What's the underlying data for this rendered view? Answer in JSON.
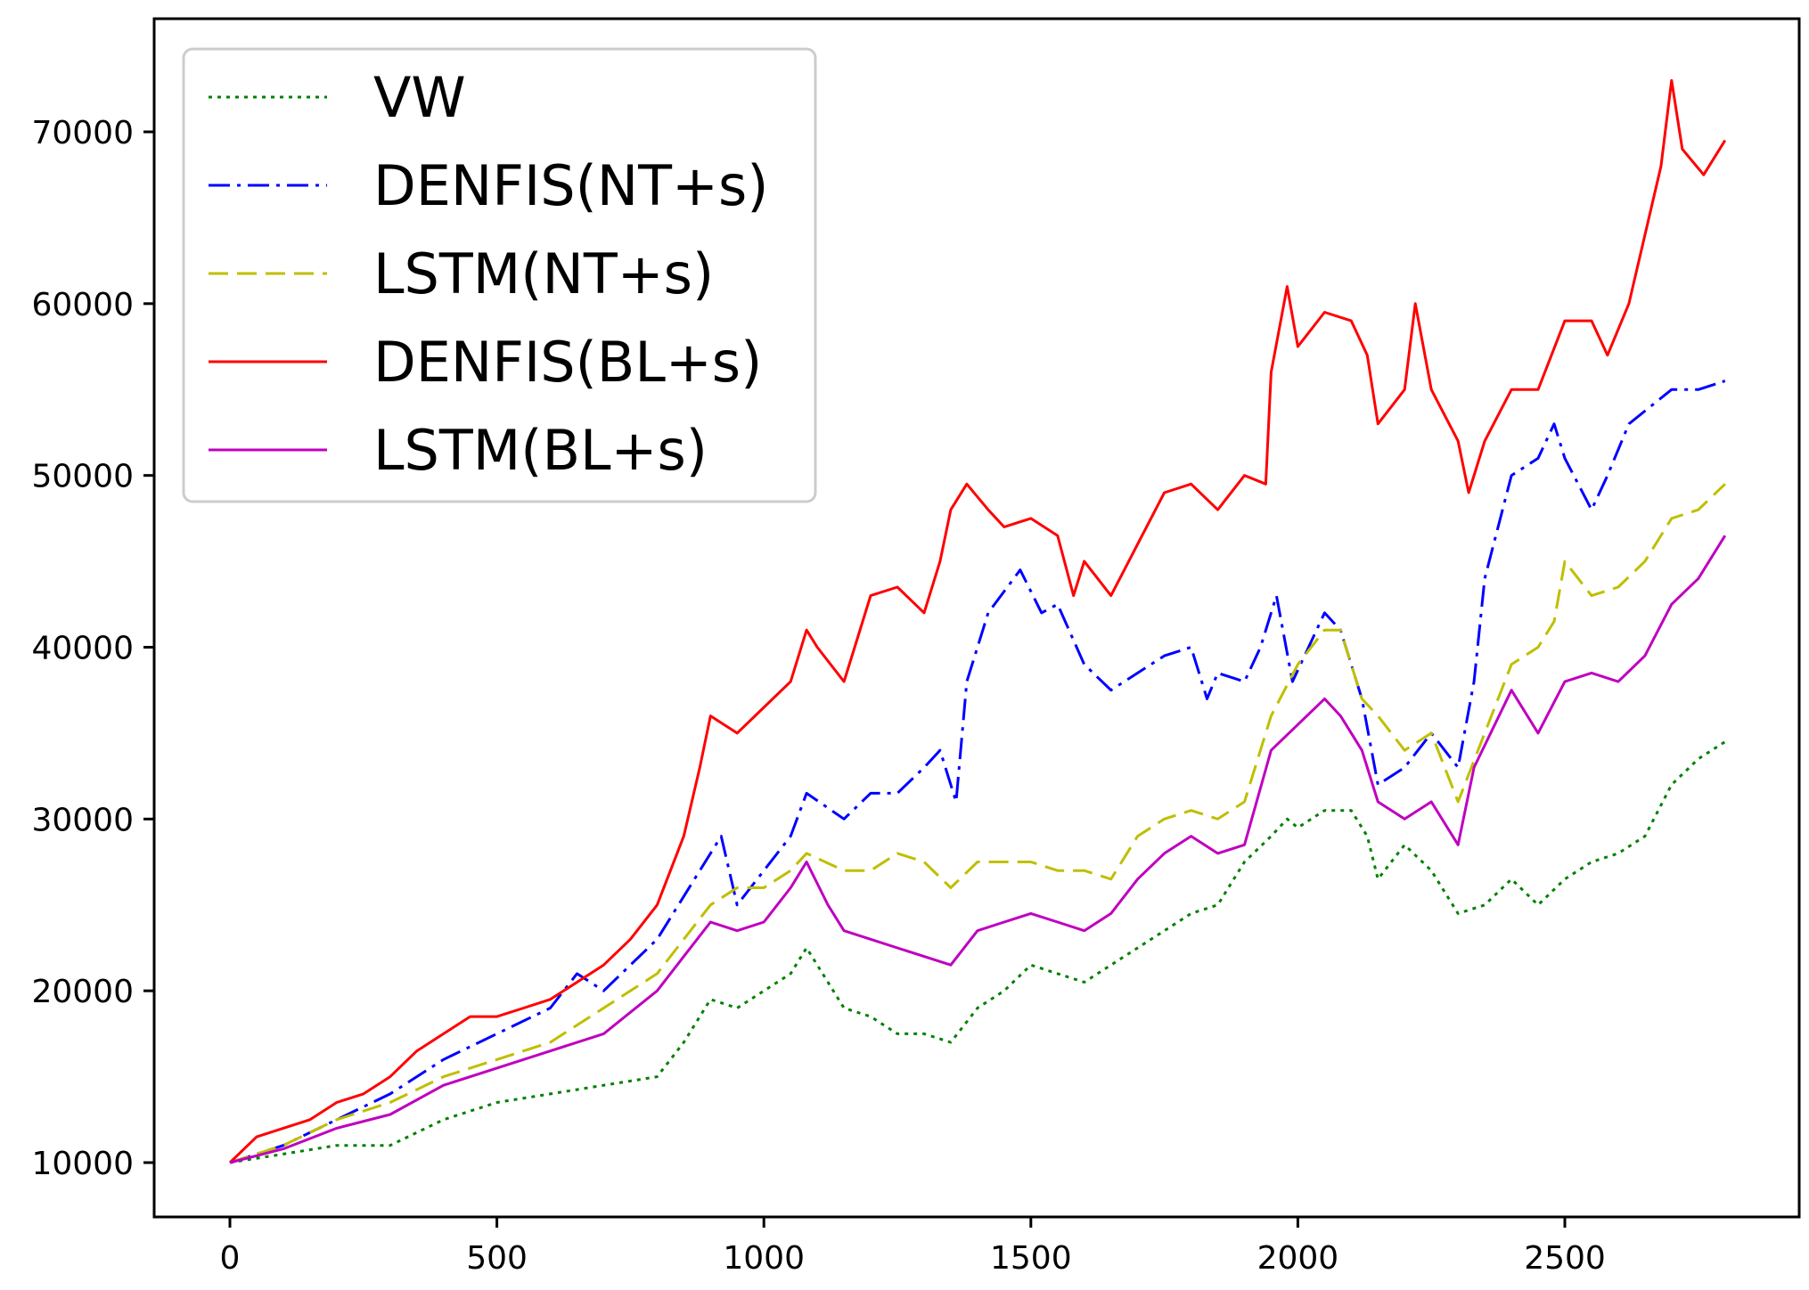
{
  "chart_data": {
    "type": "line",
    "title": "",
    "xlabel": "",
    "ylabel": "",
    "xlim": [
      -140,
      2950
    ],
    "ylim": [
      6800,
      77500
    ],
    "xticks": [
      0,
      500,
      1000,
      1500,
      2000,
      2500
    ],
    "yticks": [
      10000,
      20000,
      30000,
      40000,
      50000,
      60000,
      70000
    ],
    "xtick_labels": [
      "0",
      "500",
      "1000",
      "1500",
      "2000",
      "2500"
    ],
    "ytick_labels": [
      "10000",
      "20000",
      "30000",
      "40000",
      "50000",
      "60000",
      "70000"
    ],
    "legend_position": "top-left",
    "series": [
      {
        "name": "VW",
        "color": "#008000",
        "dash": "dotted",
        "x": [
          0,
          100,
          200,
          300,
          400,
          500,
          600,
          700,
          800,
          850,
          900,
          950,
          1000,
          1050,
          1080,
          1100,
          1150,
          1200,
          1250,
          1300,
          1350,
          1400,
          1450,
          1500,
          1550,
          1600,
          1650,
          1700,
          1750,
          1800,
          1850,
          1900,
          1950,
          1980,
          2000,
          2050,
          2100,
          2130,
          2150,
          2200,
          2250,
          2300,
          2350,
          2400,
          2450,
          2500,
          2550,
          2600,
          2650,
          2700,
          2750,
          2800
        ],
        "y": [
          10000,
          10500,
          11000,
          11000,
          12500,
          13500,
          14000,
          14500,
          15000,
          17000,
          19500,
          19000,
          20000,
          21000,
          22500,
          21500,
          19000,
          18500,
          17500,
          17500,
          17000,
          19000,
          20000,
          21500,
          21000,
          20500,
          21500,
          22500,
          23500,
          24500,
          25000,
          27500,
          29000,
          30000,
          29500,
          30500,
          30500,
          29000,
          26500,
          28500,
          27000,
          24500,
          25000,
          26500,
          25000,
          26500,
          27500,
          28000,
          29000,
          32000,
          33500,
          34500
        ]
      },
      {
        "name": "DENFIS(NT+s)",
        "color": "#0000ff",
        "dash": "dashdot",
        "x": [
          0,
          100,
          200,
          300,
          400,
          500,
          600,
          650,
          700,
          800,
          900,
          920,
          950,
          1000,
          1050,
          1080,
          1150,
          1200,
          1250,
          1300,
          1330,
          1360,
          1380,
          1420,
          1480,
          1520,
          1550,
          1600,
          1650,
          1700,
          1750,
          1800,
          1830,
          1850,
          1900,
          1930,
          1960,
          1990,
          2050,
          2080,
          2120,
          2150,
          2200,
          2250,
          2300,
          2330,
          2350,
          2400,
          2450,
          2480,
          2500,
          2550,
          2580,
          2620,
          2700,
          2750,
          2800
        ],
        "y": [
          10000,
          11000,
          12500,
          14000,
          16000,
          17500,
          19000,
          21000,
          20000,
          23000,
          28000,
          29000,
          25000,
          27000,
          29000,
          31500,
          30000,
          31500,
          31500,
          33000,
          34000,
          31000,
          38000,
          42000,
          44500,
          42000,
          42500,
          39000,
          37500,
          38500,
          39500,
          40000,
          37000,
          38500,
          38000,
          40000,
          43000,
          38000,
          42000,
          41000,
          37000,
          32000,
          33000,
          35000,
          33000,
          38000,
          44000,
          50000,
          51000,
          53000,
          51000,
          48000,
          50000,
          53000,
          55000,
          55000,
          55500
        ]
      },
      {
        "name": "LSTM(NT+s)",
        "color": "#bfbf00",
        "dash": "dashed",
        "x": [
          0,
          100,
          200,
          300,
          400,
          500,
          600,
          700,
          800,
          850,
          900,
          950,
          1000,
          1050,
          1080,
          1150,
          1200,
          1250,
          1300,
          1350,
          1400,
          1450,
          1500,
          1550,
          1600,
          1650,
          1700,
          1750,
          1800,
          1850,
          1900,
          1950,
          2000,
          2050,
          2080,
          2120,
          2150,
          2200,
          2250,
          2300,
          2350,
          2400,
          2450,
          2480,
          2500,
          2550,
          2600,
          2650,
          2700,
          2750,
          2800
        ],
        "y": [
          10000,
          11000,
          12500,
          13500,
          15000,
          16000,
          17000,
          19000,
          21000,
          23000,
          25000,
          26000,
          26000,
          27000,
          28000,
          27000,
          27000,
          28000,
          27500,
          26000,
          27500,
          27500,
          27500,
          27000,
          27000,
          26500,
          29000,
          30000,
          30500,
          30000,
          31000,
          36000,
          39000,
          41000,
          41000,
          37000,
          36000,
          34000,
          35000,
          31000,
          35000,
          39000,
          40000,
          41500,
          45000,
          43000,
          43500,
          45000,
          47500,
          48000,
          49500
        ]
      },
      {
        "name": "DENFIS(BL+s)",
        "color": "#ff0000",
        "dash": "solid",
        "x": [
          0,
          50,
          100,
          150,
          200,
          250,
          300,
          350,
          400,
          450,
          500,
          550,
          600,
          650,
          700,
          750,
          800,
          850,
          880,
          900,
          950,
          1000,
          1050,
          1080,
          1100,
          1150,
          1170,
          1200,
          1250,
          1300,
          1330,
          1350,
          1380,
          1420,
          1450,
          1500,
          1550,
          1580,
          1600,
          1650,
          1700,
          1750,
          1800,
          1850,
          1900,
          1940,
          1950,
          1980,
          2000,
          2050,
          2100,
          2130,
          2150,
          2200,
          2220,
          2250,
          2300,
          2320,
          2350,
          2400,
          2450,
          2500,
          2550,
          2580,
          2620,
          2650,
          2680,
          2700,
          2720,
          2760,
          2800
        ],
        "y": [
          10000,
          11500,
          12000,
          12500,
          13500,
          14000,
          15000,
          16500,
          17500,
          18500,
          18500,
          19000,
          19500,
          20500,
          21500,
          23000,
          25000,
          29000,
          33000,
          36000,
          35000,
          36500,
          38000,
          41000,
          40000,
          38000,
          40000,
          43000,
          43500,
          42000,
          45000,
          48000,
          49500,
          48000,
          47000,
          47500,
          46500,
          43000,
          45000,
          43000,
          46000,
          49000,
          49500,
          48000,
          50000,
          49500,
          56000,
          61000,
          57500,
          59500,
          59000,
          57000,
          53000,
          55000,
          60000,
          55000,
          52000,
          49000,
          52000,
          55000,
          55000,
          59000,
          59000,
          57000,
          60000,
          64000,
          68000,
          73000,
          69000,
          67500,
          69500
        ]
      },
      {
        "name": "LSTM(BL+s)",
        "color": "#bf00bf",
        "dash": "solid",
        "x": [
          0,
          100,
          200,
          300,
          400,
          500,
          600,
          700,
          800,
          850,
          900,
          950,
          1000,
          1050,
          1080,
          1120,
          1150,
          1200,
          1250,
          1300,
          1350,
          1400,
          1450,
          1500,
          1550,
          1600,
          1650,
          1700,
          1750,
          1800,
          1850,
          1900,
          1950,
          2000,
          2050,
          2080,
          2120,
          2150,
          2200,
          2250,
          2300,
          2330,
          2400,
          2450,
          2500,
          2550,
          2600,
          2650,
          2700,
          2750,
          2800
        ],
        "y": [
          10000,
          10800,
          12000,
          12800,
          14500,
          15500,
          16500,
          17500,
          20000,
          22000,
          24000,
          23500,
          24000,
          26000,
          27500,
          25000,
          23500,
          23000,
          22500,
          22000,
          21500,
          23500,
          24000,
          24500,
          24000,
          23500,
          24500,
          26500,
          28000,
          29000,
          28000,
          28500,
          34000,
          35500,
          37000,
          36000,
          34000,
          31000,
          30000,
          31000,
          28500,
          33000,
          37500,
          35000,
          38000,
          38500,
          38000,
          39500,
          42500,
          44000,
          46500
        ]
      }
    ]
  }
}
